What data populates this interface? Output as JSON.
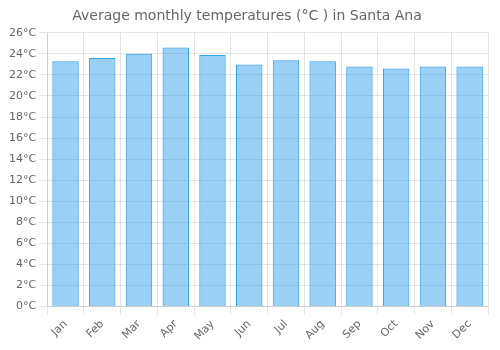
{
  "chart_data": {
    "type": "bar",
    "title": "Average monthly temperatures (°C ) in Santa Ana",
    "categories": [
      "Jan",
      "Feb",
      "Mar",
      "Apr",
      "May",
      "Jun",
      "Jul",
      "Aug",
      "Sep",
      "Oct",
      "Nov",
      "Dec"
    ],
    "values": [
      23.3,
      23.6,
      24.0,
      24.6,
      23.9,
      23.0,
      23.4,
      23.3,
      22.8,
      22.6,
      22.8,
      22.8
    ],
    "ylim": [
      0,
      26
    ],
    "yticks": [
      {
        "value": 0,
        "label": "0°C"
      },
      {
        "value": 2,
        "label": "2°C"
      },
      {
        "value": 4,
        "label": "4°C"
      },
      {
        "value": 6,
        "label": "6°C"
      },
      {
        "value": 8,
        "label": "8°C"
      },
      {
        "value": 10,
        "label": "10°C"
      },
      {
        "value": 12,
        "label": "12°C"
      },
      {
        "value": 14,
        "label": "14°C"
      },
      {
        "value": 16,
        "label": "16°C"
      },
      {
        "value": 18,
        "label": "18°C"
      },
      {
        "value": 20,
        "label": "20°C"
      },
      {
        "value": 22,
        "label": "22°C"
      },
      {
        "value": 24,
        "label": "24°C"
      },
      {
        "value": 26,
        "label": "26°C"
      }
    ],
    "grid": true
  }
}
